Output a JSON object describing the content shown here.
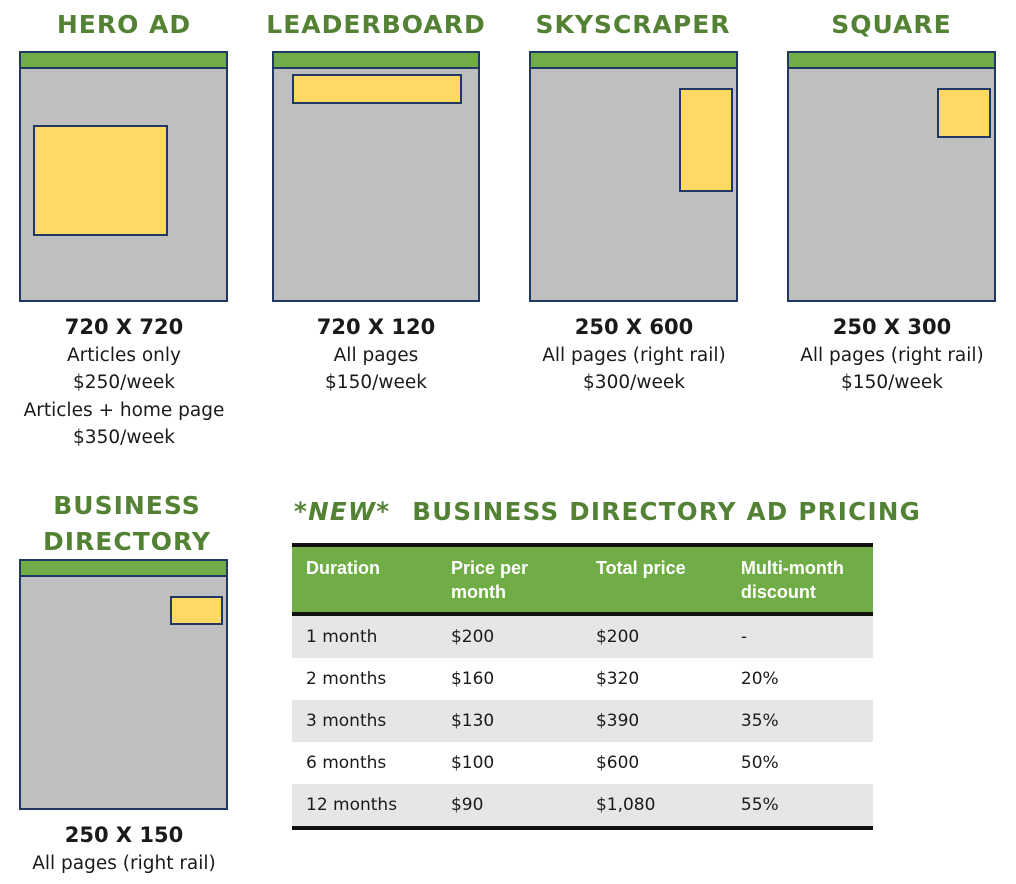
{
  "ad_formats": [
    {
      "title": "HERO AD",
      "size": "720 X 720",
      "lines": [
        "Articles only",
        "$250/week",
        "Articles + home page",
        "$350/week"
      ]
    },
    {
      "title": "LEADERBOARD",
      "size": "720 X 120",
      "lines": [
        "All pages",
        "$150/week"
      ]
    },
    {
      "title": "SKYSCRAPER",
      "size": "250 X 600",
      "lines": [
        "All pages (right rail)",
        "$300/week"
      ]
    },
    {
      "title": "SQUARE",
      "size": "250 X 300",
      "lines": [
        "All pages (right rail)",
        "$150/week"
      ]
    },
    {
      "title_line1": "BUSINESS",
      "title_line2": "DIRECTORY",
      "size": "250 X 150",
      "lines": [
        "All pages (right rail)"
      ]
    }
  ],
  "directory_pricing": {
    "title_prefix": "*NEW*",
    "title": "BUSINESS DIRECTORY AD PRICING",
    "headers": [
      "Duration",
      "Price per month",
      "Total price",
      "Multi-month discount"
    ],
    "rows": [
      [
        "1 month",
        "$200",
        "$200",
        "-"
      ],
      [
        "2 months",
        "$160",
        "$320",
        "20%"
      ],
      [
        "3 months",
        "$130",
        "$390",
        "35%"
      ],
      [
        "6 months",
        "$100",
        "$600",
        "50%"
      ],
      [
        "12 months",
        "$90",
        "$1,080",
        "55%"
      ]
    ]
  },
  "colors": {
    "heading_green": "#548235",
    "bar_green": "#70ad47",
    "mock_gray": "#bfbfbf",
    "slot_yellow": "#ffd966",
    "outline_navy": "#1f3864"
  }
}
